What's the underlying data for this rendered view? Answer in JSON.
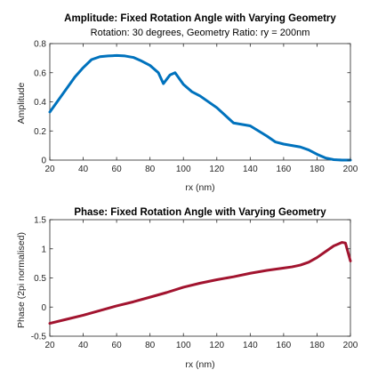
{
  "chart_data": [
    {
      "type": "line",
      "title": "Amplitude: Fixed Rotation Angle with Varying Geometry",
      "subtitle": "Rotation: 30 degrees, Geometry Ratio: ry = 200nm",
      "xlabel": "rx (nm)",
      "ylabel": "Amplitude",
      "xlim": [
        20,
        200
      ],
      "ylim": [
        0,
        0.8
      ],
      "xticks": [
        20,
        40,
        60,
        80,
        100,
        120,
        140,
        160,
        180,
        200
      ],
      "yticks": [
        0,
        0.2,
        0.4,
        0.6,
        0.8
      ],
      "xtick_labels": [
        "20",
        "40",
        "60",
        "80",
        "100",
        "120",
        "140",
        "160",
        "180",
        "200"
      ],
      "ytick_labels": [
        "0",
        "0.2",
        "0.4",
        "0.6",
        "0.8"
      ],
      "grid": false,
      "series": [
        {
          "color": "#0072BD",
          "x": [
            20,
            25,
            30,
            35,
            40,
            45,
            50,
            55,
            60,
            65,
            70,
            75,
            80,
            85,
            88,
            92,
            95,
            100,
            105,
            110,
            120,
            130,
            140,
            150,
            155,
            160,
            170,
            175,
            180,
            185,
            190,
            195,
            200
          ],
          "y": [
            0.33,
            0.41,
            0.49,
            0.57,
            0.635,
            0.69,
            0.71,
            0.715,
            0.718,
            0.715,
            0.705,
            0.68,
            0.65,
            0.6,
            0.525,
            0.585,
            0.6,
            0.52,
            0.47,
            0.44,
            0.36,
            0.255,
            0.235,
            0.165,
            0.125,
            0.11,
            0.09,
            0.07,
            0.04,
            0.015,
            0.003,
            0.0,
            0.0
          ]
        }
      ]
    },
    {
      "type": "line",
      "title": "Phase: Fixed Rotation Angle with Varying Geometry",
      "xlabel": "rx (nm)",
      "ylabel": "Phase (2pi normalised)",
      "xlim": [
        20,
        200
      ],
      "ylim": [
        -0.5,
        1.5
      ],
      "xticks": [
        20,
        40,
        60,
        80,
        100,
        120,
        140,
        160,
        180,
        200
      ],
      "yticks": [
        -0.5,
        0,
        0.5,
        1,
        1.5
      ],
      "xtick_labels": [
        "20",
        "40",
        "60",
        "80",
        "100",
        "120",
        "140",
        "160",
        "180",
        "200"
      ],
      "ytick_labels": [
        "-0.5",
        "0",
        "0.5",
        "1",
        "1.5"
      ],
      "grid": false,
      "series": [
        {
          "color": "#A2142F",
          "x": [
            20,
            30,
            40,
            50,
            60,
            70,
            80,
            90,
            100,
            110,
            120,
            130,
            140,
            150,
            160,
            165,
            170,
            175,
            180,
            185,
            190,
            195,
            197,
            200
          ],
          "y": [
            -0.28,
            -0.21,
            -0.14,
            -0.06,
            0.02,
            0.09,
            0.17,
            0.25,
            0.34,
            0.41,
            0.47,
            0.52,
            0.58,
            0.63,
            0.67,
            0.69,
            0.72,
            0.77,
            0.85,
            0.95,
            1.05,
            1.11,
            1.1,
            0.79
          ]
        }
      ]
    }
  ]
}
